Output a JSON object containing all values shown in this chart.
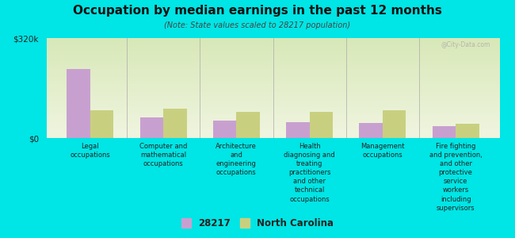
{
  "title": "Occupation by median earnings in the past 12 months",
  "subtitle": "(Note: State values scaled to 28217 population)",
  "background_color": "#00e5e5",
  "plot_bg_top": "#d8e8b8",
  "plot_bg_bottom": "#f0f5e0",
  "categories": [
    "Legal\noccupations",
    "Computer and\nmathematical\noccupations",
    "Architecture\nand\nengineering\noccupations",
    "Health\ndiagnosing and\ntreating\npractitioners\nand other\ntechnical\noccupations",
    "Management\noccupations",
    "Fire fighting\nand prevention,\nand other\nprotective\nservice\nworkers\nincluding\nsupervisors"
  ],
  "values_28217": [
    220000,
    65000,
    55000,
    50000,
    48000,
    38000
  ],
  "values_nc": [
    90000,
    95000,
    85000,
    85000,
    90000,
    45000
  ],
  "color_28217": "#c8a0d0",
  "color_nc": "#c8d080",
  "ylim": [
    0,
    320000
  ],
  "yticks": [
    0,
    320000
  ],
  "ytick_labels": [
    "$0",
    "$320k"
  ],
  "legend_labels": [
    "28217",
    "North Carolina"
  ],
  "bar_width": 0.32,
  "watermark": "@City-Data.com"
}
